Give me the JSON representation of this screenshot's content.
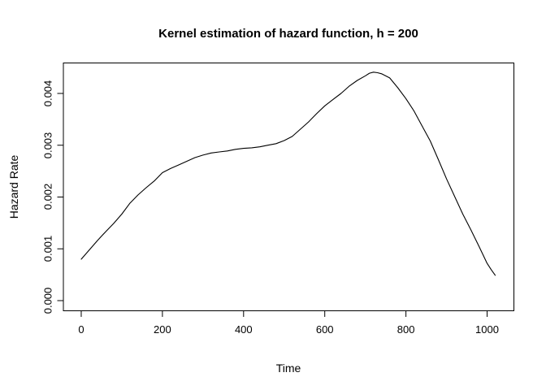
{
  "figure": {
    "title": "Kernel estimation of hazard function, h = 200"
  },
  "chart_data": {
    "type": "line",
    "title": "Kernel estimation of hazard function, h = 200",
    "xlabel": "Time",
    "ylabel": "Hazard Rate",
    "x_ticks": [
      0,
      200,
      400,
      600,
      800,
      1000
    ],
    "x_tick_labels": [
      "0",
      "200",
      "400",
      "600",
      "800",
      "1000"
    ],
    "y_ticks": [
      0,
      0.001,
      0.002,
      0.003,
      0.004
    ],
    "y_tick_labels": [
      "0.000",
      "0.001",
      "0.002",
      "0.003",
      "0.004"
    ],
    "xlim": [
      -44,
      1066
    ],
    "ylim": [
      -0.000196,
      0.004588
    ],
    "grid": false,
    "legend_position": "none",
    "line_color": "#000000",
    "background_color": "#ffffff",
    "series": [
      {
        "name": "kernel hazard estimate",
        "x": [
          0,
          20,
          40,
          60,
          80,
          100,
          120,
          140,
          160,
          180,
          200,
          220,
          240,
          260,
          280,
          300,
          320,
          340,
          360,
          380,
          400,
          420,
          440,
          460,
          480,
          500,
          520,
          540,
          560,
          580,
          600,
          620,
          640,
          660,
          680,
          700,
          710,
          720,
          730,
          740,
          760,
          780,
          800,
          820,
          840,
          860,
          880,
          900,
          920,
          940,
          960,
          980,
          1000,
          1010,
          1020
        ],
        "y": [
          0.0008,
          0.00098,
          0.00116,
          0.00133,
          0.00149,
          0.00167,
          0.00188,
          0.00204,
          0.00218,
          0.00231,
          0.00247,
          0.00255,
          0.00262,
          0.00269,
          0.00276,
          0.00281,
          0.00285,
          0.00287,
          0.00289,
          0.00292,
          0.00294,
          0.00295,
          0.00297,
          0.003,
          0.00303,
          0.00309,
          0.00317,
          0.00331,
          0.00345,
          0.00361,
          0.00376,
          0.00388,
          0.004,
          0.00414,
          0.00425,
          0.00434,
          0.00439,
          0.00441,
          0.0044,
          0.00438,
          0.0043,
          0.00411,
          0.0039,
          0.00366,
          0.00337,
          0.00308,
          0.00272,
          0.00235,
          0.00201,
          0.00167,
          0.00137,
          0.00105,
          0.00072,
          0.0006,
          0.00049
        ]
      }
    ]
  }
}
